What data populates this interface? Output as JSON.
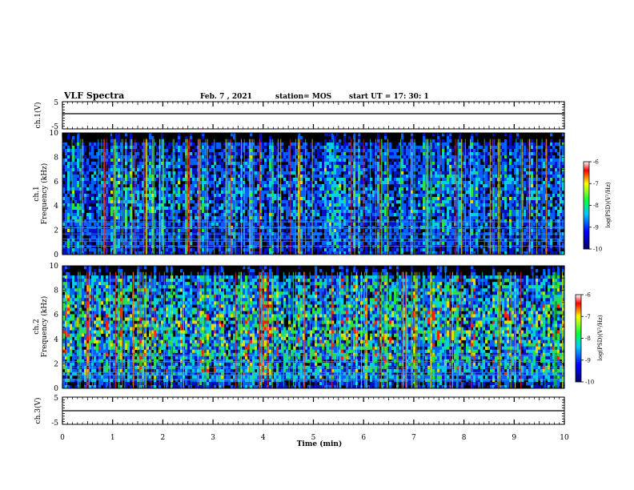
{
  "header": {
    "title": "VLF Spectra",
    "date": "Feb. 7 , 2021",
    "station": "station= MOS",
    "start": "start  UT =   17: 30: 1"
  },
  "chart_data": [
    {
      "type": "line",
      "panel": "ch1-waveform",
      "ylabel": "ch.1(V)",
      "ylim": [
        -5,
        5
      ],
      "yticks": [
        "5",
        "-5"
      ],
      "xlim": [
        0,
        10
      ],
      "series": [
        {
          "x": [
            0,
            10
          ],
          "y": [
            0,
            0
          ]
        }
      ]
    },
    {
      "type": "heatmap",
      "panel": "ch1-spectrogram",
      "ylabel": "ch.1\nFrequency (kHz)",
      "ylim": [
        0,
        10
      ],
      "yticks": [
        "0",
        "2",
        "4",
        "6",
        "8",
        "10"
      ],
      "xlim": [
        0,
        10
      ],
      "colorbar": {
        "label": "log(PSD)(V²/Hz)",
        "range": [
          -10,
          -6
        ],
        "ticks": [
          "-6",
          "-7",
          "-8",
          "-9",
          "-10"
        ]
      }
    },
    {
      "type": "heatmap",
      "panel": "ch2-spectrogram",
      "ylabel": "ch.2\nFrequency (kHz)",
      "ylim": [
        0,
        10
      ],
      "yticks": [
        "0",
        "2",
        "4",
        "6",
        "8",
        "10"
      ],
      "xlim": [
        0,
        10
      ],
      "colorbar": {
        "label": "log(PSD)(V²/Hz)",
        "range": [
          -10,
          -6
        ],
        "ticks": [
          "-6",
          "-7",
          "-8",
          "-9",
          "-10"
        ]
      }
    },
    {
      "type": "line",
      "panel": "ch3-waveform",
      "ylabel": "ch.3(V)",
      "ylim": [
        -5,
        5
      ],
      "yticks": [
        "5",
        "-5"
      ],
      "xlim": [
        0,
        10
      ],
      "xlabel": "Time  (min)",
      "xticks": [
        "0",
        "1",
        "2",
        "3",
        "4",
        "5",
        "6",
        "7",
        "8",
        "9",
        "10"
      ],
      "series": [
        {
          "x": [
            0,
            10
          ],
          "y": [
            0,
            0
          ]
        }
      ]
    }
  ],
  "colors": {
    "spectro_bg": "#000000",
    "low": "#0000c8",
    "mid": "#00d8d8",
    "high": "#30e030",
    "peak": "#ff2000"
  }
}
